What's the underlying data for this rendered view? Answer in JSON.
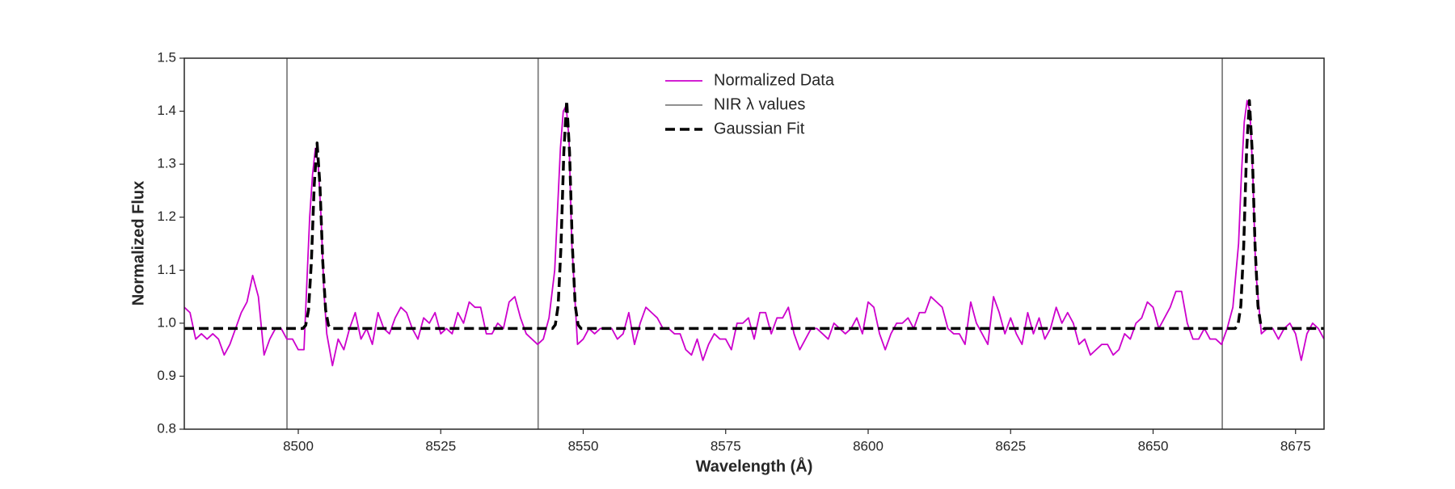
{
  "chart_data": {
    "type": "line",
    "xlabel": "Wavelength (Å)",
    "ylabel": "Normalized Flux",
    "xlim": [
      8480,
      8680
    ],
    "xticks": [
      8500,
      8525,
      8550,
      8575,
      8600,
      8625,
      8650,
      8675
    ],
    "ylim": [
      0.8,
      1.5
    ],
    "yticks": [
      0.8,
      0.9,
      {
        "value": 1.0,
        "label": "1.0"
      },
      1.1,
      1.2,
      1.3,
      1.4,
      1.5
    ],
    "legend": "upper center",
    "series": [
      {
        "name": "Normalized Data",
        "color": "#cc00cc",
        "style": "solid",
        "x": [
          8480,
          8481,
          8482,
          8483,
          8484,
          8485,
          8486,
          8487,
          8488,
          8489,
          8490,
          8491,
          8492,
          8493,
          8494,
          8495,
          8496,
          8497,
          8498,
          8499,
          8500,
          8501,
          8502,
          8502.5,
          8503,
          8503.5,
          8504,
          8504.5,
          8505,
          8506,
          8507,
          8508,
          8509,
          8510,
          8511,
          8512,
          8513,
          8514,
          8515,
          8516,
          8517,
          8518,
          8519,
          8520,
          8521,
          8522,
          8523,
          8524,
          8525,
          8526,
          8527,
          8528,
          8529,
          8530,
          8531,
          8532,
          8533,
          8534,
          8535,
          8536,
          8537,
          8538,
          8539,
          8540,
          8541,
          8542,
          8543,
          8544,
          8545,
          8546,
          8546.5,
          8547,
          8547.5,
          8548,
          8549,
          8550,
          8551,
          8552,
          8553,
          8554,
          8555,
          8556,
          8557,
          8558,
          8559,
          8560,
          8561,
          8562,
          8563,
          8564,
          8565,
          8566,
          8567,
          8568,
          8569,
          8570,
          8571,
          8572,
          8573,
          8574,
          8575,
          8576,
          8577,
          8578,
          8579,
          8580,
          8581,
          8582,
          8583,
          8584,
          8585,
          8586,
          8587,
          8588,
          8589,
          8590,
          8591,
          8592,
          8593,
          8594,
          8595,
          8596,
          8597,
          8598,
          8599,
          8600,
          8601,
          8602,
          8603,
          8604,
          8605,
          8606,
          8607,
          8608,
          8609,
          8610,
          8611,
          8612,
          8613,
          8614,
          8615,
          8616,
          8617,
          8618,
          8619,
          8620,
          8621,
          8622,
          8623,
          8624,
          8625,
          8626,
          8627,
          8628,
          8629,
          8630,
          8631,
          8632,
          8633,
          8634,
          8635,
          8636,
          8637,
          8638,
          8639,
          8640,
          8641,
          8642,
          8643,
          8644,
          8645,
          8646,
          8647,
          8648,
          8649,
          8650,
          8651,
          8652,
          8653,
          8654,
          8655,
          8656,
          8657,
          8658,
          8659,
          8660,
          8661,
          8662,
          8663,
          8664,
          8665,
          8665.5,
          8666,
          8666.5,
          8667,
          8667.5,
          8668,
          8669,
          8670,
          8671,
          8672,
          8673,
          8674,
          8675,
          8676,
          8677,
          8678,
          8679,
          8680
        ],
        "values": [
          1.03,
          1.02,
          0.97,
          0.98,
          0.97,
          0.98,
          0.97,
          0.94,
          0.96,
          0.99,
          1.02,
          1.04,
          1.09,
          1.05,
          0.94,
          0.97,
          0.99,
          0.99,
          0.97,
          0.97,
          0.95,
          0.95,
          1.2,
          1.28,
          1.33,
          1.3,
          1.2,
          1.06,
          0.98,
          0.92,
          0.97,
          0.95,
          0.99,
          1.02,
          0.97,
          0.99,
          0.96,
          1.02,
          0.99,
          0.98,
          1.01,
          1.03,
          1.02,
          0.99,
          0.97,
          1.01,
          1.0,
          1.02,
          0.98,
          0.99,
          0.98,
          1.02,
          1.0,
          1.04,
          1.03,
          1.03,
          0.98,
          0.98,
          1.0,
          0.99,
          1.04,
          1.05,
          1.01,
          0.98,
          0.97,
          0.96,
          0.97,
          1.01,
          1.1,
          1.33,
          1.4,
          1.41,
          1.35,
          1.15,
          0.96,
          0.97,
          0.99,
          0.98,
          0.99,
          0.99,
          0.99,
          0.97,
          0.98,
          1.02,
          0.96,
          1.0,
          1.03,
          1.02,
          1.01,
          0.99,
          0.99,
          0.98,
          0.98,
          0.95,
          0.94,
          0.97,
          0.93,
          0.96,
          0.98,
          0.97,
          0.97,
          0.95,
          1.0,
          1.0,
          1.01,
          0.97,
          1.02,
          1.02,
          0.98,
          1.01,
          1.01,
          1.03,
          0.98,
          0.95,
          0.97,
          0.99,
          0.99,
          0.98,
          0.97,
          1.0,
          0.99,
          0.98,
          0.99,
          1.01,
          0.98,
          1.04,
          1.03,
          0.98,
          0.95,
          0.98,
          1.0,
          1.0,
          1.01,
          0.99,
          1.02,
          1.02,
          1.05,
          1.04,
          1.03,
          0.99,
          0.98,
          0.98,
          0.96,
          1.04,
          1.0,
          0.98,
          0.96,
          1.05,
          1.02,
          0.98,
          1.01,
          0.98,
          0.96,
          1.02,
          0.98,
          1.01,
          0.97,
          0.99,
          1.03,
          1.0,
          1.02,
          1.0,
          0.96,
          0.97,
          0.94,
          0.95,
          0.96,
          0.96,
          0.94,
          0.95,
          0.98,
          0.97,
          1.0,
          1.01,
          1.04,
          1.03,
          0.99,
          1.01,
          1.03,
          1.06,
          1.06,
          1.0,
          0.97,
          0.97,
          0.99,
          0.97,
          0.97,
          0.96,
          0.99,
          1.03,
          1.15,
          1.28,
          1.38,
          1.42,
          1.4,
          1.28,
          1.1,
          0.98,
          0.99,
          0.99,
          0.97,
          0.99,
          1.0,
          0.98,
          0.93,
          0.98,
          1.0,
          0.99,
          0.97
        ]
      },
      {
        "name": "NIR λ values",
        "color": "#808080",
        "style": "vline",
        "x": [
          8498.02,
          8542.09,
          8662.14
        ]
      },
      {
        "name": "Gaussian Fit",
        "color": "#000000",
        "style": "dashed",
        "x": [
          8480,
          8500.8,
          8501.3,
          8501.8,
          8502.3,
          8502.8,
          8503.3,
          8503.8,
          8504.3,
          8504.8,
          8505.3,
          8505.8,
          8544.6,
          8545.1,
          8545.6,
          8546.1,
          8546.6,
          8547.1,
          8547.6,
          8548.1,
          8548.6,
          8549.1,
          8549.6,
          8664.4,
          8664.9,
          8665.4,
          8665.9,
          8666.4,
          8666.9,
          8667.4,
          8667.9,
          8668.4,
          8668.9,
          8669.4,
          8680
        ],
        "values": [
          0.99,
          0.99,
          0.996,
          1.025,
          1.116,
          1.261,
          1.34,
          1.261,
          1.116,
          1.025,
          0.996,
          0.99,
          0.99,
          0.997,
          1.033,
          1.145,
          1.323,
          1.42,
          1.323,
          1.145,
          1.033,
          0.997,
          0.99,
          0.99,
          0.997,
          1.033,
          1.145,
          1.323,
          1.42,
          1.323,
          1.145,
          1.033,
          0.997,
          0.99,
          0.99
        ]
      }
    ]
  }
}
